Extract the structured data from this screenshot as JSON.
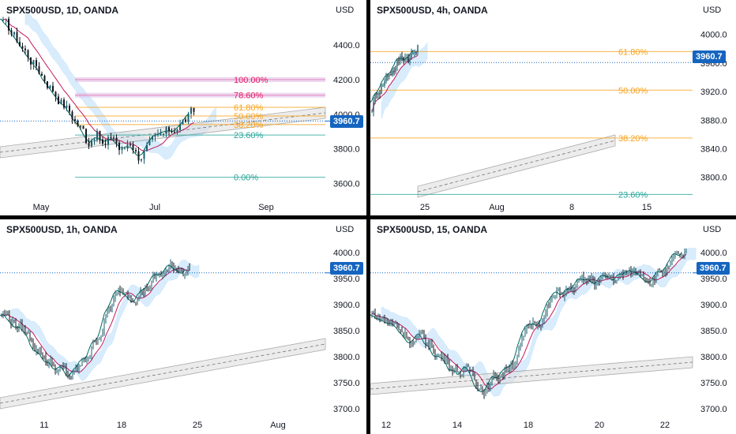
{
  "chart_data": [
    {
      "type": "candlestick",
      "title": "SPX500USD, 1D, OANDA",
      "currency": "USD",
      "last_price": "3960.7",
      "y_ticks": [
        "4400.0",
        "4200.0",
        "4000.0",
        "3800.0",
        "3600.0"
      ],
      "y_tick_values": [
        4400,
        4200,
        4000,
        3800,
        3600
      ],
      "ylim": [
        3520,
        4560
      ],
      "x_ticks": [
        "May",
        "Jul",
        "Sep"
      ],
      "fib_levels": [
        {
          "label": "100.00%",
          "value": 4200,
          "color": "#e91e63"
        },
        {
          "label": "78.60%",
          "value": 4110,
          "color": "#e91e63"
        },
        {
          "label": "61.80%",
          "value": 4040,
          "color": "#f7a21b"
        },
        {
          "label": "50.00%",
          "value": 3990,
          "color": "#f7a21b"
        },
        {
          "label": "38.20%",
          "value": 3940,
          "color": "#f7a21b"
        },
        {
          "label": "23.60%",
          "value": 3880,
          "color": "#26a69a"
        },
        {
          "label": "0.00%",
          "value": 3636,
          "color": "#26a69a"
        }
      ]
    },
    {
      "type": "candlestick",
      "title": "SPX500USD, 4h, OANDA",
      "currency": "USD",
      "last_price": "3960.7",
      "y_ticks": [
        "4000.0",
        "3960.0",
        "3920.0",
        "3880.0",
        "3840.0",
        "3800.0"
      ],
      "y_tick_values": [
        4000,
        3960,
        3920,
        3880,
        3840,
        3800
      ],
      "ylim": [
        3772,
        4024
      ],
      "x_ticks": [
        "25",
        "Aug",
        "8",
        "15"
      ],
      "fib_levels": [
        {
          "label": "61.80%",
          "value": 3976,
          "color": "#f7a21b"
        },
        {
          "label": "50.00%",
          "value": 3922,
          "color": "#f7a21b"
        },
        {
          "label": "38.20%",
          "value": 3855,
          "color": "#f7a21b"
        },
        {
          "label": "23.60%",
          "value": 3776,
          "color": "#26a69a"
        }
      ]
    },
    {
      "type": "candlestick",
      "title": "SPX500USD, 1h, OANDA",
      "currency": "USD",
      "last_price": "3960.7",
      "y_ticks": [
        "4000.0",
        "3950.0",
        "3900.0",
        "3850.0",
        "3800.0",
        "3750.0",
        "3700.0"
      ],
      "y_tick_values": [
        4000,
        3950,
        3900,
        3850,
        3800,
        3750,
        3700
      ],
      "ylim": [
        3685,
        4030
      ],
      "x_ticks": [
        "11",
        "18",
        "25",
        "Aug"
      ]
    },
    {
      "type": "candlestick",
      "title": "SPX500USD, 15, OANDA",
      "currency": "USD",
      "last_price": "3960.7",
      "y_ticks": [
        "4000.0",
        "3950.0",
        "3900.0",
        "3850.0",
        "3800.0",
        "3750.0",
        "3700.0"
      ],
      "y_tick_values": [
        4000,
        3950,
        3900,
        3850,
        3800,
        3750,
        3700
      ],
      "ylim": [
        3685,
        4030
      ],
      "x_ticks": [
        "12",
        "14",
        "18",
        "20",
        "22"
      ]
    }
  ],
  "colors": {
    "up": "#1b5e6e",
    "down": "#131722",
    "price_tag": "#1565c0",
    "fib_orange": "#f7a21b",
    "fib_pink": "#e91e63",
    "fib_teal": "#26a69a",
    "cloud_blue": "#bbdefb",
    "cloud_pink": "#e1bee7"
  }
}
